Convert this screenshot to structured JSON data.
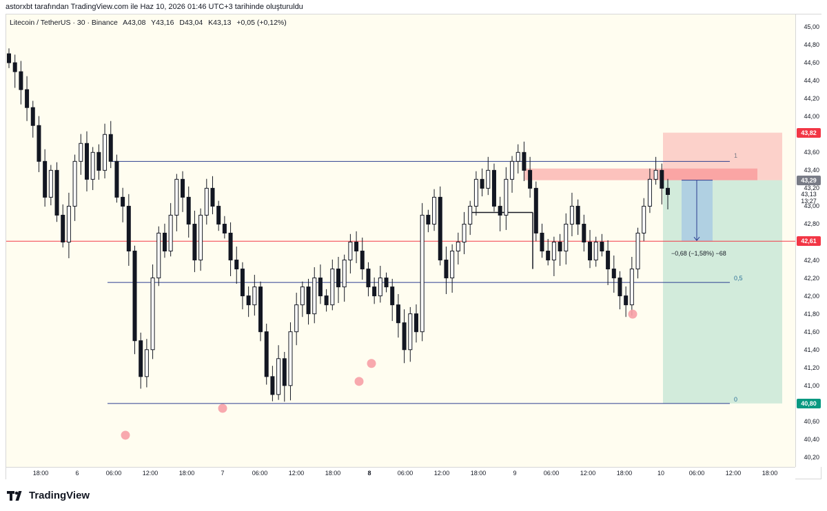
{
  "header": {
    "attribution": "astorxbt tarafından TradingView.com ile Haz 10, 2026 01:46 UTC+3 tarihinde oluşturuldu"
  },
  "legend": {
    "symbol": "Litecoin / TetherUS · 30 · Binance",
    "open": "A43,08",
    "high": "Y43,16",
    "low": "D43,04",
    "close": "K43,13",
    "change": "+0,05 (+0,12%)"
  },
  "y_axis": {
    "ticks": [
      "45,00",
      "44,80",
      "44,60",
      "44,40",
      "44,20",
      "44,00",
      "43,80",
      "43,60",
      "43,40",
      "43,20",
      "43,00",
      "42,80",
      "42,60",
      "42,40",
      "42,20",
      "42,00",
      "41,80",
      "41,60",
      "41,40",
      "41,20",
      "41,00",
      "40,80",
      "40,60",
      "40,40",
      "40,20"
    ],
    "badges": {
      "stop": {
        "label": "43,82",
        "color": "#f23645"
      },
      "current": {
        "label": "43,29",
        "color": "#787b86"
      },
      "entry": {
        "label": "42,61",
        "color": "#f23645"
      },
      "target": {
        "label": "40,80",
        "color": "#089981"
      }
    },
    "live_price": "43,13",
    "countdown": "13:27",
    "sub_price": "43,00"
  },
  "x_axis": {
    "ticks": [
      "18:00",
      "6",
      "06:00",
      "12:00",
      "18:00",
      "7",
      "06:00",
      "12:00",
      "18:00",
      "8",
      "06:00",
      "12:00",
      "18:00",
      "9",
      "06:00",
      "12:00",
      "18:00",
      "10",
      "06:00",
      "12:00",
      "18:00"
    ]
  },
  "fib_labels": {
    "top": "1",
    "mid": "0,5",
    "bottom": "0"
  },
  "measure": {
    "label": "−0,68 (−1,58%) −68"
  },
  "footer": {
    "brand": "TradingView"
  },
  "chart_data": {
    "type": "candlestick",
    "symbol": "LTC/USDT",
    "interval": "30",
    "ylim": [
      40.2,
      45.0
    ],
    "close_series": [
      44.6,
      44.5,
      44.3,
      44.1,
      43.9,
      43.5,
      43.1,
      43.4,
      42.9,
      42.6,
      43.0,
      43.5,
      43.7,
      43.3,
      43.6,
      43.4,
      43.8,
      43.5,
      43.1,
      43.0,
      42.5,
      41.5,
      41.1,
      41.4,
      42.2,
      42.7,
      42.5,
      42.9,
      43.3,
      43.1,
      42.8,
      42.4,
      42.9,
      43.2,
      43.0,
      42.8,
      42.7,
      42.4,
      42.3,
      42.0,
      41.9,
      42.1,
      41.6,
      41.1,
      40.9,
      41.3,
      41.0,
      41.6,
      41.9,
      42.1,
      41.8,
      42.2,
      42.0,
      41.9,
      42.3,
      42.1,
      42.4,
      42.6,
      42.5,
      42.3,
      42.1,
      42.0,
      42.2,
      42.1,
      41.9,
      41.7,
      41.4,
      41.8,
      41.6,
      42.9,
      42.8,
      43.1,
      42.4,
      42.2,
      42.5,
      42.6,
      42.8,
      43.0,
      43.3,
      43.2,
      43.4,
      43.0,
      42.9,
      43.3,
      43.5,
      43.6,
      43.4,
      43.2,
      42.7,
      42.5,
      42.4,
      42.6,
      42.5,
      42.8,
      43.0,
      42.8,
      42.6,
      42.4,
      42.6,
      42.5,
      42.3,
      42.2,
      42.0,
      41.9,
      42.3,
      42.7,
      43.0,
      43.3,
      43.4,
      43.2,
      43.13
    ],
    "annotations": {
      "fib_1": 43.5,
      "fib_0_5": 42.15,
      "fib_0": 40.8,
      "horizontal_red": 42.61,
      "swing_lows": [
        40.5,
        40.8,
        41.1,
        41.3,
        41.85
      ],
      "short_position": {
        "entry": 43.29,
        "stop": 43.82,
        "target": 40.8
      },
      "sell_zone": [
        43.29,
        43.42
      ],
      "measure_from": 43.29,
      "measure_to": 42.61
    }
  }
}
